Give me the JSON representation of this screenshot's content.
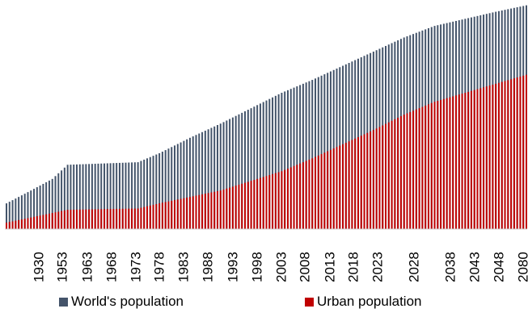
{
  "chart_data": {
    "type": "bar",
    "x_start": 1910,
    "x_end": 2080,
    "tick_labels": [
      "1930",
      "1953",
      "1963",
      "1968",
      "1973",
      "1978",
      "1983",
      "1988",
      "1993",
      "1998",
      "2003",
      "2008",
      "2013",
      "2018",
      "2023",
      "2028",
      "2038",
      "2043",
      "2048",
      "2080"
    ],
    "series": [
      {
        "name": "World's population",
        "color": "#44546a",
        "anchors": [
          [
            1910,
            40
          ],
          [
            1918,
            60
          ],
          [
            1925,
            78
          ],
          [
            1930,
            100
          ],
          [
            1953,
            104
          ],
          [
            1960,
            118
          ],
          [
            1970,
            142
          ],
          [
            1980,
            164
          ],
          [
            1990,
            188
          ],
          [
            2000,
            212
          ],
          [
            2010,
            232
          ],
          [
            2020,
            254
          ],
          [
            2030,
            276
          ],
          [
            2040,
            298
          ],
          [
            2050,
            316
          ],
          [
            2060,
            327
          ],
          [
            2070,
            338
          ],
          [
            2080,
            348
          ]
        ]
      },
      {
        "name": "Urban population",
        "color": "#c00000",
        "anchors": [
          [
            1910,
            10
          ],
          [
            1920,
            20
          ],
          [
            1930,
            30
          ],
          [
            1953,
            32
          ],
          [
            1960,
            40
          ],
          [
            1970,
            50
          ],
          [
            1980,
            60
          ],
          [
            1990,
            75
          ],
          [
            2000,
            90
          ],
          [
            2010,
            110
          ],
          [
            2020,
            132
          ],
          [
            2030,
            154
          ],
          [
            2040,
            178
          ],
          [
            2050,
            198
          ],
          [
            2060,
            212
          ],
          [
            2070,
            226
          ],
          [
            2080,
            240
          ]
        ]
      }
    ],
    "ylim": [
      0,
      350
    ],
    "grid": false,
    "legend_position": "bottom"
  }
}
